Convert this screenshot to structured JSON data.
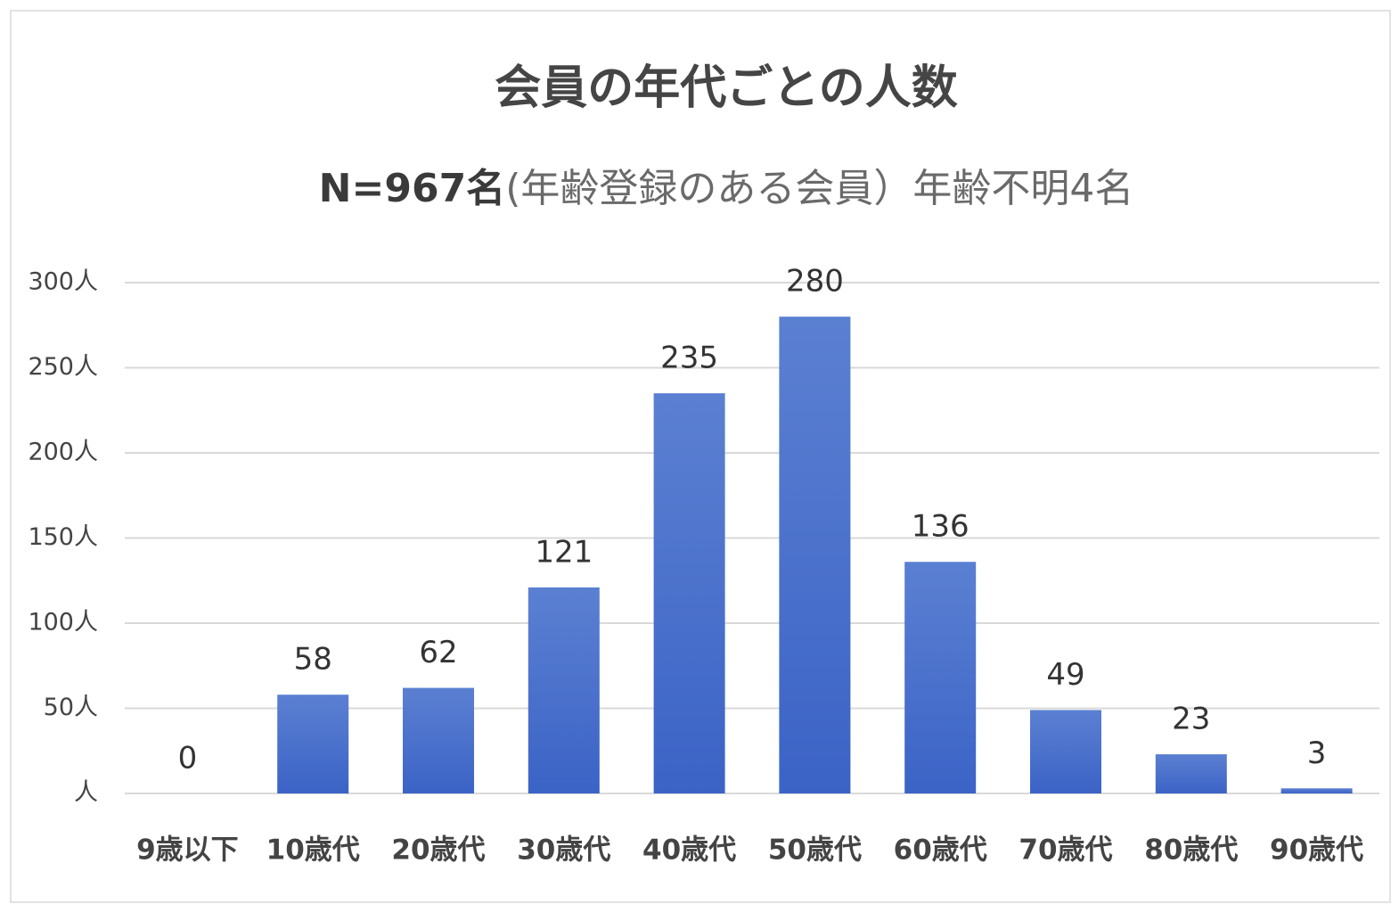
{
  "chart_data": {
    "type": "bar",
    "title": "会員の年代ごとの人数",
    "subtitle": [
      "N=967名",
      "(年齢登録のある会員）年齢不明4名"
    ],
    "categories": [
      "9歳以下",
      "10歳代",
      "20歳代",
      "30歳代",
      "40歳代",
      "50歳代",
      "60歳代",
      "70歳代",
      "80歳代",
      "90歳代"
    ],
    "values": [
      0,
      58,
      62,
      121,
      235,
      280,
      136,
      49,
      23,
      3
    ],
    "color": "#4a72cc",
    "ylim": [
      0,
      300
    ],
    "yticks": [
      {
        "value": 0,
        "label": "人"
      },
      {
        "value": 50,
        "label": "50人"
      },
      {
        "value": 100,
        "label": "100人"
      },
      {
        "value": 150,
        "label": "150人"
      },
      {
        "value": 200,
        "label": "200人"
      },
      {
        "value": 250,
        "label": "250人"
      },
      {
        "value": 300,
        "label": "300人"
      }
    ],
    "grid": true
  }
}
